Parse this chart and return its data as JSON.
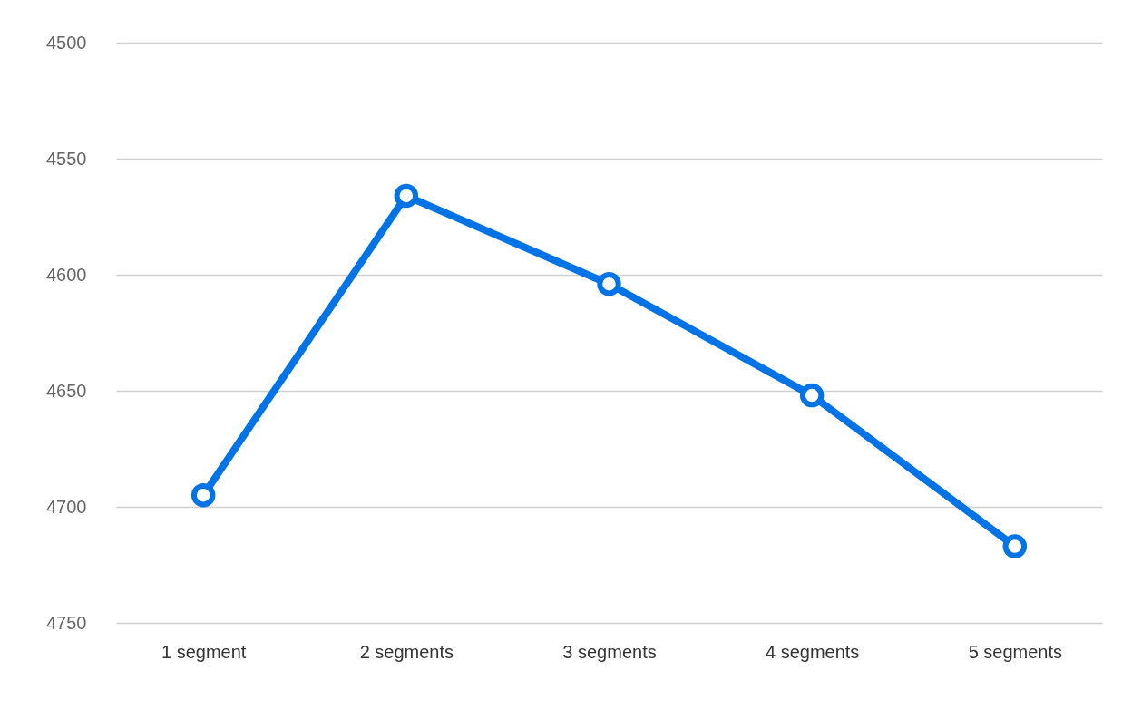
{
  "chart_data": {
    "type": "line",
    "categories": [
      "1 segment",
      "2 segments",
      "3 segments",
      "4 segments",
      "5 segments"
    ],
    "series": [
      {
        "color": "#0073e6",
        "values": [
          4695,
          4566,
          4604,
          4652,
          4717
        ]
      }
    ],
    "ylim": [
      4750,
      4500
    ],
    "yticks": [
      4500,
      4550,
      4600,
      4650,
      4700,
      4750
    ],
    "grid": "y",
    "marker": "circle",
    "line_style": "solid"
  }
}
